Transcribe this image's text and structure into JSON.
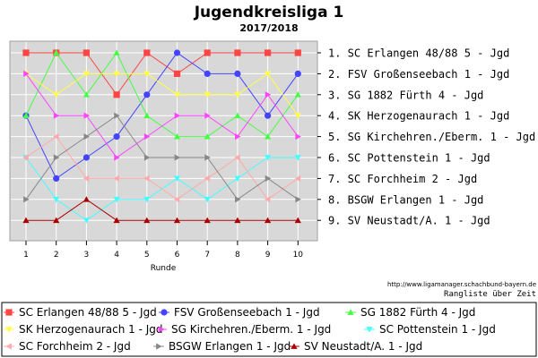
{
  "chart_data": {
    "type": "line",
    "title": "Jugendkreisliga 1",
    "subtitle": "2017/2018",
    "xlabel": "Runde",
    "ylabel": "",
    "x": [
      1,
      2,
      3,
      4,
      5,
      6,
      7,
      8,
      9,
      10
    ],
    "ylim": [
      1,
      9
    ],
    "y_inverted": true,
    "grid": true,
    "legend_position": "bottom",
    "standings_labels": [
      "1.  SC Erlangen 48/88 5 - Jgd",
      "2.  FSV Großenseebach 1 - Jgd",
      "3.  SG 1882 Fürth 4 - Jgd",
      "4.  SK Herzogenaurach 1 - Jgd",
      "5.  SG Kirchehren./Eberm. 1 - Jgd",
      "6.  SC Pottenstein 1 - Jgd",
      "7.  SC Forchheim 2 - Jgd",
      "8.  BSGW Erlangen 1 - Jgd",
      "9.  SV Neustadt/A. 1 - Jgd"
    ],
    "series": [
      {
        "name": "SC Erlangen 48/88 5 - Jgd",
        "color": "#ff4444",
        "marker": "square",
        "values": [
          1,
          1,
          1,
          3,
          1,
          2,
          1,
          1,
          1,
          1
        ]
      },
      {
        "name": "FSV Großenseebach 1 - Jgd",
        "color": "#4444ff",
        "marker": "circle",
        "values": [
          4,
          7,
          6,
          5,
          3,
          1,
          2,
          2,
          4,
          2
        ]
      },
      {
        "name": "SG 1882 Fürth 4 - Jgd",
        "color": "#44ff44",
        "marker": "triangle-up",
        "values": [
          4,
          1,
          3,
          1,
          4,
          5,
          5,
          4,
          5,
          3
        ]
      },
      {
        "name": "SK Herzogenaurach 1 - Jgd",
        "color": "#ffff44",
        "marker": "triangle-down",
        "values": [
          2,
          3,
          2,
          2,
          2,
          3,
          3,
          3,
          2,
          4
        ]
      },
      {
        "name": "SG Kirchehren./Eberm. 1 - Jgd",
        "color": "#ff44ff",
        "marker": "triangle-right",
        "values": [
          2,
          4,
          4,
          6,
          5,
          4,
          4,
          5,
          3,
          5
        ]
      },
      {
        "name": "SC Pottenstein 1 - Jgd",
        "color": "#44ffff",
        "marker": "triangle-down",
        "values": [
          6,
          8,
          9,
          8,
          8,
          7,
          8,
          7,
          6,
          6
        ]
      },
      {
        "name": "SC Forchheim 2 - Jgd",
        "color": "#ffaaaa",
        "marker": "triangle-left",
        "values": [
          6,
          5,
          7,
          7,
          7,
          8,
          7,
          6,
          8,
          7
        ]
      },
      {
        "name": "BSGW Erlangen 1 - Jgd",
        "color": "#888888",
        "marker": "triangle-right",
        "values": [
          8,
          6,
          5,
          4,
          6,
          6,
          6,
          8,
          7,
          8
        ]
      },
      {
        "name": "SV Neustadt/A. 1 - Jgd",
        "color": "#aa0000",
        "marker": "triangle-up",
        "values": [
          9,
          9,
          8,
          9,
          9,
          9,
          9,
          9,
          9,
          9
        ]
      }
    ]
  },
  "footer": {
    "url": "http://www.ligamanager.schachbund-bayern.de",
    "caption": "Rangliste über Zeit"
  }
}
